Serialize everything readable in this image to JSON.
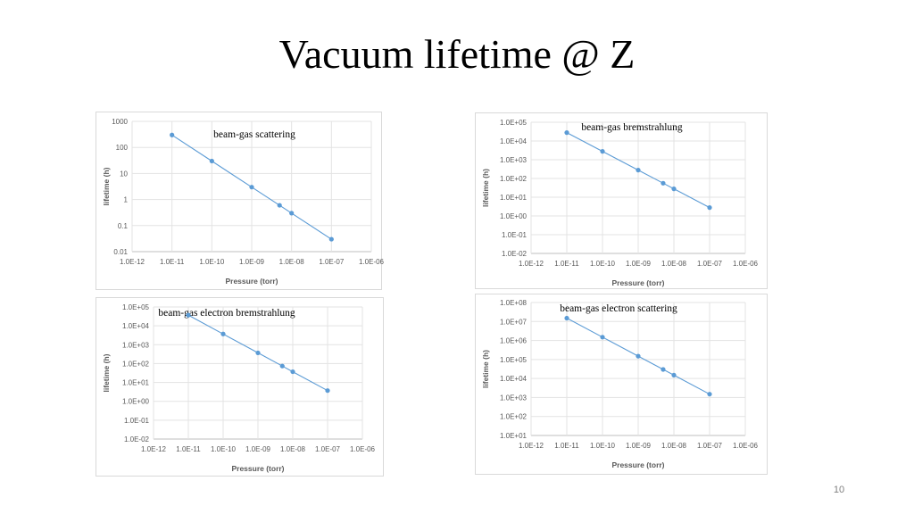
{
  "slide": {
    "title": "Vacuum lifetime @ Z",
    "page_number": "10"
  },
  "chart_data": [
    {
      "type": "scatter",
      "annotation": "beam-gas scattering",
      "xlabel": "Pressure (torr)",
      "ylabel": "lifetime (h)",
      "xscale": "log",
      "yscale": "log",
      "xlim": [
        1e-12,
        1e-06
      ],
      "ylim": [
        0.01,
        1000
      ],
      "grid": true,
      "x_tick_labels": [
        "1.0E-12",
        "1.0E-11",
        "1.0E-10",
        "1.0E-09",
        "1.0E-08",
        "1.0E-07",
        "1.0E-06"
      ],
      "y_tick_labels": [
        "1000",
        "100",
        "10",
        "1",
        "0.1",
        "0.01"
      ],
      "series": [
        {
          "x": [
            1e-11,
            1e-10,
            1e-09,
            5e-09,
            1e-08,
            1e-07
          ],
          "y": [
            300,
            30,
            3,
            0.6,
            0.3,
            0.03
          ]
        }
      ],
      "color": "#5b9bd5"
    },
    {
      "type": "scatter",
      "annotation": "beam-gas bremstrahlung",
      "xlabel": "Pressure (torr)",
      "ylabel": "lifetime (h)",
      "xscale": "log",
      "yscale": "log",
      "xlim": [
        1e-12,
        1e-06
      ],
      "ylim": [
        0.01,
        100000
      ],
      "grid": true,
      "x_tick_labels": [
        "1.0E-12",
        "1.0E-11",
        "1.0E-10",
        "1.0E-09",
        "1.0E-08",
        "1.0E-07",
        "1.0E-06"
      ],
      "y_tick_labels": [
        "1.0E+05",
        "1.0E+04",
        "1.0E+03",
        "1.0E+02",
        "1.0E+01",
        "1.0E+00",
        "1.0E-01",
        "1.0E-02"
      ],
      "series": [
        {
          "x": [
            1e-11,
            1e-10,
            1e-09,
            5e-09,
            1e-08,
            1e-07
          ],
          "y": [
            28000,
            2800,
            280,
            56,
            28,
            2.8
          ]
        }
      ],
      "color": "#5b9bd5"
    },
    {
      "type": "scatter",
      "annotation": "beam-gas electron bremstrahlung",
      "xlabel": "Pressure (torr)",
      "ylabel": "lifetime (h)",
      "xscale": "log",
      "yscale": "log",
      "xlim": [
        1e-12,
        1e-06
      ],
      "ylim": [
        0.01,
        100000
      ],
      "grid": true,
      "x_tick_labels": [
        "1.0E-12",
        "1.0E-11",
        "1.0E-10",
        "1.0E-09",
        "1.0E-08",
        "1.0E-07",
        "1.0E-06"
      ],
      "y_tick_labels": [
        "1.0E+05",
        "1.0E+04",
        "1.0E+03",
        "1.0E+02",
        "1.0E+01",
        "1.0E+00",
        "1.0E-01",
        "1.0E-02"
      ],
      "series": [
        {
          "x": [
            1e-11,
            1e-10,
            1e-09,
            5e-09,
            1e-08,
            1e-07
          ],
          "y": [
            37000,
            3700,
            370,
            74,
            37,
            3.7
          ]
        }
      ],
      "color": "#5b9bd5"
    },
    {
      "type": "scatter",
      "annotation": "beam-gas electron scattering",
      "xlabel": "Pressure (torr)",
      "ylabel": "lifetime (h)",
      "xscale": "log",
      "yscale": "log",
      "xlim": [
        1e-12,
        1e-06
      ],
      "ylim": [
        10,
        100000000
      ],
      "grid": true,
      "x_tick_labels": [
        "1.0E-12",
        "1.0E-11",
        "1.0E-10",
        "1.0E-09",
        "1.0E-08",
        "1.0E-07",
        "1.0E-06"
      ],
      "y_tick_labels": [
        "1.0E+08",
        "1.0E+07",
        "1.0E+06",
        "1.0E+05",
        "1.0E+04",
        "1.0E+03",
        "1.0E+02",
        "1.0E+01"
      ],
      "series": [
        {
          "x": [
            1e-11,
            1e-10,
            1e-09,
            5e-09,
            1e-08,
            1e-07
          ],
          "y": [
            15000000,
            1500000,
            150000,
            30000,
            15000,
            1500
          ]
        }
      ],
      "color": "#5b9bd5"
    }
  ]
}
